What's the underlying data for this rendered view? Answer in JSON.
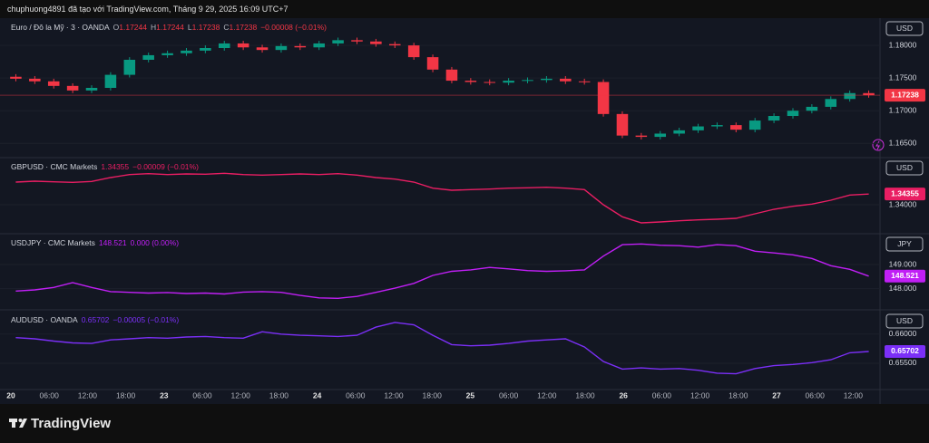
{
  "attribution": "chuphuong4891 đã tạo với TradingView.com, Tháng 9 29, 2025 16:09 UTC+7",
  "brand": "TradingView",
  "time_axis": [
    "20",
    "06:00",
    "12:00",
    "18:00",
    "23",
    "06:00",
    "12:00",
    "18:00",
    "24",
    "06:00",
    "12:00",
    "18:00",
    "25",
    "06:00",
    "12:00",
    "18:00",
    "26",
    "06:00",
    "12:00",
    "18:00",
    "27",
    "06:00",
    "12:00"
  ],
  "chart_data": [
    {
      "type": "candlestick",
      "symbol": "Euro / Đô la Mỹ · 3 · OANDA",
      "ohlc": [
        {
          "label": "O",
          "value": 1.17244
        },
        {
          "label": "H",
          "value": 1.17244
        },
        {
          "label": "L",
          "value": 1.17238
        },
        {
          "label": "C",
          "value": 1.17238
        }
      ],
      "change": "−0.00008 (−0.01%)",
      "currency": "USD",
      "last_price": 1.17238,
      "up_color": "#089981",
      "down_color": "#f23645",
      "grid": true,
      "ylim": [
        1.1631,
        1.1839
      ],
      "yticks": [
        {
          "value": 1.18,
          "label": "1.18000"
        },
        {
          "value": 1.175,
          "label": "1.17500"
        },
        {
          "value": 1.17,
          "label": "1.17000"
        },
        {
          "value": 1.165,
          "label": "1.16500"
        }
      ],
      "open": [
        1.1752,
        1.1749,
        1.1745,
        1.1738,
        1.1731,
        1.1735,
        1.1755,
        1.1778,
        1.1785,
        1.1788,
        1.1792,
        1.1796,
        1.1803,
        1.1797,
        1.1793,
        1.1799,
        1.1797,
        1.1803,
        1.1808,
        1.1806,
        1.1802,
        1.18,
        1.1782,
        1.1763,
        1.1746,
        1.1744,
        1.1743,
        1.1746,
        1.1747,
        1.1749,
        1.1745,
        1.1744,
        1.1695,
        1.1662,
        1.166,
        1.1665,
        1.167,
        1.1676,
        1.1678,
        1.1671,
        1.1685,
        1.1692,
        1.17,
        1.1706,
        1.1718,
        1.1727
      ],
      "high": [
        1.1756,
        1.1753,
        1.1749,
        1.1742,
        1.1739,
        1.1759,
        1.1782,
        1.1789,
        1.1792,
        1.1796,
        1.18,
        1.1807,
        1.1807,
        1.1801,
        1.1803,
        1.1803,
        1.1807,
        1.1812,
        1.1812,
        1.181,
        1.1806,
        1.1804,
        1.1786,
        1.1767,
        1.175,
        1.1748,
        1.175,
        1.1751,
        1.1753,
        1.1753,
        1.1749,
        1.1748,
        1.1699,
        1.1666,
        1.1669,
        1.1674,
        1.168,
        1.1682,
        1.1682,
        1.1689,
        1.1696,
        1.1704,
        1.171,
        1.1722,
        1.1731,
        1.1731
      ],
      "low": [
        1.1745,
        1.1741,
        1.1734,
        1.1727,
        1.1727,
        1.1731,
        1.1751,
        1.1774,
        1.1781,
        1.1784,
        1.1788,
        1.1792,
        1.1793,
        1.1789,
        1.1789,
        1.1793,
        1.1793,
        1.1799,
        1.1802,
        1.1798,
        1.1796,
        1.1778,
        1.1759,
        1.1742,
        1.174,
        1.1739,
        1.1739,
        1.1742,
        1.1743,
        1.1741,
        1.174,
        1.1691,
        1.1658,
        1.1656,
        1.1656,
        1.1661,
        1.1666,
        1.1672,
        1.1667,
        1.1667,
        1.1681,
        1.1688,
        1.1696,
        1.1702,
        1.1714,
        1.172
      ],
      "close": [
        1.1749,
        1.1745,
        1.1738,
        1.1731,
        1.1735,
        1.1755,
        1.1778,
        1.1785,
        1.1788,
        1.1792,
        1.1796,
        1.1803,
        1.1797,
        1.1793,
        1.1799,
        1.1797,
        1.1803,
        1.1808,
        1.1806,
        1.1802,
        1.18,
        1.1782,
        1.1763,
        1.1746,
        1.1744,
        1.1743,
        1.1746,
        1.1747,
        1.1749,
        1.1745,
        1.1744,
        1.1695,
        1.1662,
        1.166,
        1.1665,
        1.167,
        1.1676,
        1.1678,
        1.1671,
        1.1685,
        1.1692,
        1.17,
        1.1706,
        1.1718,
        1.1727,
        1.17238
      ]
    },
    {
      "type": "line",
      "symbol": "GBPUSD · CMC Markets",
      "change": "−0.00009 (−0.01%)",
      "currency": "USD",
      "last_price": 1.34355,
      "color": "#e91e63",
      "grid": true,
      "ylim": [
        1.331,
        1.355
      ],
      "yticks": [
        {
          "value": 1.34,
          "label": "1.34000"
        }
      ],
      "values": [
        1.3475,
        1.3478,
        1.3476,
        1.3474,
        1.3477,
        1.349,
        1.35,
        1.3503,
        1.35,
        1.3502,
        1.3501,
        1.3504,
        1.35,
        1.3498,
        1.35,
        1.3502,
        1.35,
        1.3503,
        1.3498,
        1.349,
        1.3485,
        1.3475,
        1.3455,
        1.3448,
        1.345,
        1.3452,
        1.3455,
        1.3456,
        1.3458,
        1.3455,
        1.345,
        1.34,
        1.336,
        1.334,
        1.3343,
        1.3347,
        1.335,
        1.3352,
        1.3355,
        1.337,
        1.3385,
        1.3395,
        1.3402,
        1.3415,
        1.3432,
        1.34355
      ]
    },
    {
      "type": "line",
      "symbol": "USDJPY · CMC Markets",
      "change": "0.000 (0.00%)",
      "currency": "JPY",
      "last_price": 148.521,
      "color": "#c01ff5",
      "grid": true,
      "ylim": [
        147.2,
        150.2
      ],
      "yticks": [
        {
          "value": 149,
          "label": "149.000"
        },
        {
          "value": 148,
          "label": "148.000"
        }
      ],
      "values": [
        147.9,
        147.95,
        148.05,
        148.25,
        148.05,
        147.88,
        147.85,
        147.82,
        147.84,
        147.8,
        147.82,
        147.78,
        147.86,
        147.88,
        147.85,
        147.72,
        147.62,
        147.6,
        147.68,
        147.85,
        148.02,
        148.22,
        148.55,
        148.72,
        148.78,
        148.88,
        148.82,
        148.75,
        148.72,
        148.74,
        148.78,
        149.35,
        149.82,
        149.85,
        149.8,
        149.78,
        149.72,
        149.82,
        149.78,
        149.55,
        149.48,
        149.4,
        149.25,
        148.95,
        148.8,
        148.521
      ]
    },
    {
      "type": "line",
      "symbol": "AUDUSD · OANDA",
      "change": "−0.00005 (−0.01%)",
      "currency": "USD",
      "last_price": 0.65702,
      "color": "#7b2ff7",
      "grid": true,
      "ylim": [
        0.6508,
        0.6637
      ],
      "yticks": [
        {
          "value": 0.66,
          "label": "0.66000"
        },
        {
          "value": 0.655,
          "label": "0.65500"
        }
      ],
      "values": [
        0.6594,
        0.6592,
        0.6588,
        0.6585,
        0.6584,
        0.659,
        0.6592,
        0.6594,
        0.6593,
        0.6595,
        0.6596,
        0.6594,
        0.6593,
        0.6604,
        0.66,
        0.6598,
        0.6597,
        0.6596,
        0.6598,
        0.6612,
        0.662,
        0.6616,
        0.6598,
        0.6582,
        0.658,
        0.6581,
        0.6584,
        0.6588,
        0.659,
        0.6592,
        0.6578,
        0.6553,
        0.654,
        0.6542,
        0.654,
        0.6541,
        0.6538,
        0.6533,
        0.6532,
        0.6541,
        0.6546,
        0.6548,
        0.6551,
        0.6556,
        0.6568,
        0.65702
      ]
    }
  ]
}
